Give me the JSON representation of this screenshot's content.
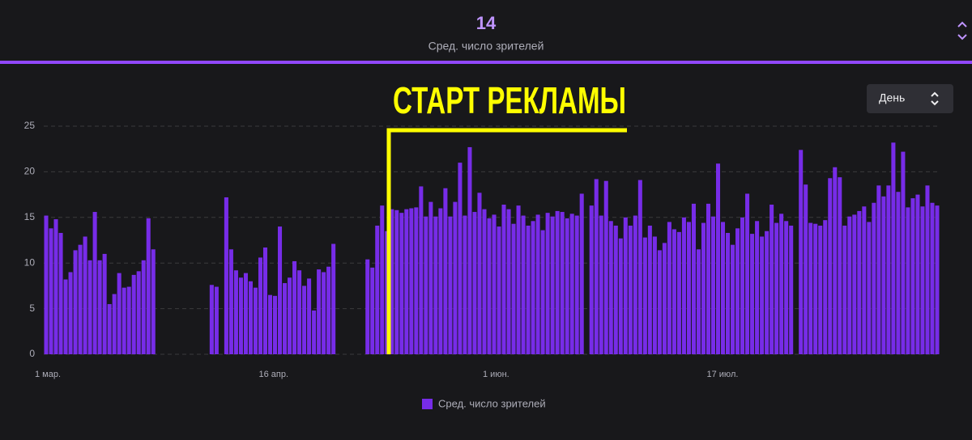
{
  "header": {
    "value": 14,
    "label": "Сред. число зрителей"
  },
  "interval_selector": "День",
  "chart_data": {
    "type": "bar",
    "annotation": "СТАРТ РЕКЛАМЫ",
    "categories": [
      "1 мар.",
      null,
      null,
      null,
      null,
      null,
      null,
      null,
      null,
      null,
      null,
      null,
      null,
      null,
      null,
      null,
      null,
      null,
      null,
      null,
      null,
      null,
      null,
      null,
      null,
      null,
      null,
      null,
      null,
      null,
      null,
      null,
      null,
      null,
      null,
      null,
      null,
      null,
      null,
      null,
      null,
      null,
      null,
      null,
      null,
      null,
      "16 апр.",
      null,
      null,
      null,
      null,
      null,
      null,
      null,
      null,
      null,
      null,
      null,
      null,
      null,
      null,
      null,
      null,
      null,
      null,
      null,
      null,
      null,
      null,
      null,
      null,
      null,
      null,
      null,
      null,
      null,
      null,
      null,
      null,
      null,
      null,
      null,
      null,
      null,
      null,
      null,
      null,
      null,
      null,
      null,
      null,
      null,
      "1 июн.",
      null,
      null,
      null,
      null,
      null,
      null,
      null,
      null,
      null,
      null,
      null,
      null,
      null,
      null,
      null,
      null,
      null,
      null,
      null,
      null,
      null,
      null,
      null,
      null,
      null,
      null,
      null,
      null,
      null,
      null,
      null,
      null,
      null,
      null,
      null,
      null,
      null,
      null,
      null,
      null,
      null,
      null,
      null,
      null,
      null,
      "17 июл.",
      null,
      null,
      null,
      null,
      null,
      null,
      null,
      null,
      null,
      null,
      null,
      null,
      null,
      null,
      null,
      null,
      null,
      null,
      null,
      null,
      null,
      null,
      null,
      null,
      null,
      null,
      null,
      null,
      null,
      null,
      null,
      null,
      null,
      null,
      null,
      null,
      null,
      null,
      null,
      null,
      null,
      null,
      null,
      null,
      null
    ],
    "series": [
      {
        "name": "Сред. число зрителей",
        "color": "#772ce8",
        "values": [
          15.2,
          13.8,
          14.8,
          13.3,
          8.2,
          9,
          11.4,
          12,
          12.9,
          10.3,
          15.6,
          10.3,
          11,
          5.5,
          6.6,
          8.9,
          7.3,
          7.4,
          8.7,
          9.1,
          10.3,
          14.9,
          11.5,
          null,
          null,
          null,
          null,
          null,
          null,
          null,
          null,
          null,
          null,
          null,
          7.6,
          7.4,
          null,
          17.2,
          11.5,
          9.2,
          8.4,
          8.9,
          8,
          7.3,
          10.6,
          11.7,
          6.5,
          6.4,
          14,
          7.8,
          8.4,
          10.2,
          9.2,
          7.5,
          8.3,
          4.8,
          9.3,
          9,
          9.6,
          12.1,
          null,
          null,
          null,
          null,
          null,
          null,
          10.4,
          9.5,
          14.1,
          16.3,
          13.5,
          15.9,
          15.8,
          15.5,
          15.9,
          16,
          16.1,
          18.4,
          15.1,
          16.7,
          15.1,
          16,
          18.2,
          15.1,
          16.7,
          21,
          15.2,
          22.7,
          15.6,
          17.7,
          15.9,
          14.9,
          15.3,
          14,
          16.4,
          15.9,
          14.3,
          16.3,
          15.2,
          14.1,
          14.6,
          15.3,
          13.6,
          15.5,
          15.1,
          15.7,
          15.6,
          14.9,
          15.4,
          15.2,
          17.6,
          null,
          16.3,
          19.2,
          15.2,
          19,
          14.6,
          14.1,
          12.7,
          15,
          14.1,
          15.2,
          19.1,
          12.8,
          14.1,
          12.9,
          11.4,
          12.2,
          14.5,
          13.7,
          13.4,
          15,
          14.5,
          16.5,
          11.5,
          14.4,
          16.5,
          15.1,
          20.9,
          14.5,
          13.3,
          12,
          13.8,
          15,
          17.6,
          13.2,
          14.6,
          12.9,
          13.5,
          16.4,
          14.4,
          15.4,
          14.6,
          14.1,
          null,
          22.4,
          18.6,
          14.4,
          14.3,
          14.1,
          14.7,
          19.3,
          20.5,
          19.4,
          14.1,
          15.1,
          15.3,
          15.7,
          16.2,
          14.5,
          16.6,
          18.5,
          17.3,
          18.5,
          23.2,
          17.8,
          22.2,
          16.1,
          17.1,
          17.5,
          16.2,
          18.5,
          16.6,
          16.3
        ]
      }
    ],
    "ylim": [
      0,
      25
    ],
    "yticks": [
      0,
      5,
      10,
      15,
      20,
      25
    ],
    "grid": true,
    "legend": "bottom"
  }
}
